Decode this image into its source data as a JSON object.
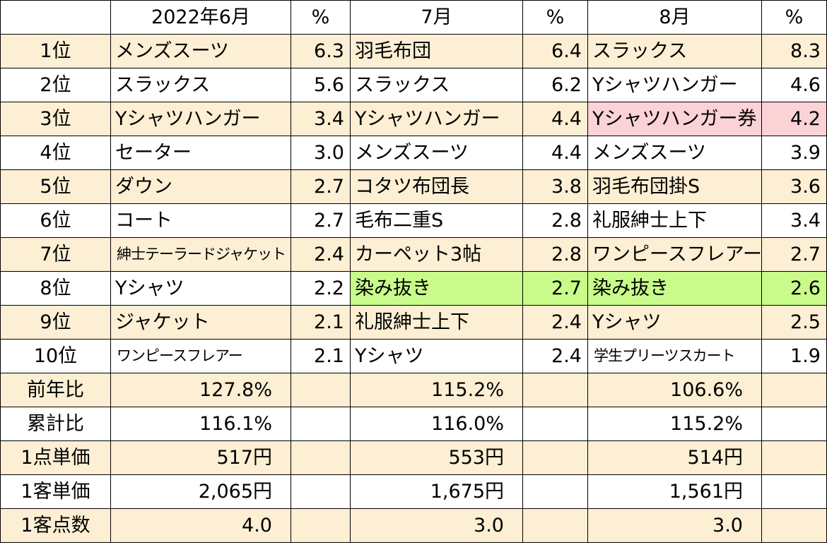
{
  "header": {
    "rank_col": "",
    "months": [
      "2022年6月",
      "7月",
      "8月"
    ],
    "pct_label": "%"
  },
  "ranks": [
    {
      "rank": "1位",
      "items": [
        [
          "メンズスーツ",
          "6.3"
        ],
        [
          "羽毛布団",
          "6.4"
        ],
        [
          "スラックス",
          "8.3"
        ]
      ]
    },
    {
      "rank": "2位",
      "items": [
        [
          "スラックス",
          "5.6"
        ],
        [
          "スラックス",
          "6.2"
        ],
        [
          "Yシャツハンガー",
          "4.6"
        ]
      ]
    },
    {
      "rank": "3位",
      "items": [
        [
          "Yシャツハンガー",
          "3.4"
        ],
        [
          "Yシャツハンガー",
          "4.4"
        ],
        [
          "Yシャツハンガー券",
          "4.2"
        ]
      ]
    },
    {
      "rank": "4位",
      "items": [
        [
          "セーター",
          "3.0"
        ],
        [
          "メンズスーツ",
          "4.4"
        ],
        [
          "メンズスーツ",
          "3.9"
        ]
      ]
    },
    {
      "rank": "5位",
      "items": [
        [
          "ダウン",
          "2.7"
        ],
        [
          "コタツ布団長",
          "3.8"
        ],
        [
          "羽毛布団掛S",
          "3.6"
        ]
      ]
    },
    {
      "rank": "6位",
      "items": [
        [
          "コート",
          "2.7"
        ],
        [
          "毛布二重S",
          "2.8"
        ],
        [
          "礼服紳士上下",
          "3.4"
        ]
      ]
    },
    {
      "rank": "7位",
      "items": [
        [
          "紳士テーラードジャケット",
          "2.4"
        ],
        [
          "カーペット3帖",
          "2.8"
        ],
        [
          "ワンピースフレアー",
          "2.7"
        ]
      ]
    },
    {
      "rank": "8位",
      "items": [
        [
          "Yシャツ",
          "2.2"
        ],
        [
          "染み抜き",
          "2.7"
        ],
        [
          "染み抜き",
          "2.6"
        ]
      ]
    },
    {
      "rank": "9位",
      "items": [
        [
          "ジャケット",
          "2.1"
        ],
        [
          "礼服紳士上下",
          "2.4"
        ],
        [
          "Yシャツ",
          "2.5"
        ]
      ]
    },
    {
      "rank": "10位",
      "items": [
        [
          "ワンピースフレアー",
          "2.1"
        ],
        [
          "Yシャツ",
          "2.4"
        ],
        [
          "学生プリーツスカート",
          "1.9"
        ]
      ]
    }
  ],
  "summary": [
    {
      "label": "前年比",
      "values": [
        "127.8%",
        "115.2%",
        "106.6%"
      ]
    },
    {
      "label": "累計比",
      "values": [
        "116.1%",
        "116.0%",
        "115.2%"
      ]
    },
    {
      "label": "1点単価",
      "values": [
        "517円",
        "553円",
        "514円"
      ]
    },
    {
      "label": "1客単価",
      "values": [
        "2,065円",
        "1,675円",
        "1,561円"
      ]
    },
    {
      "label": "1客点数",
      "values": [
        "4.0",
        "3.0",
        "3.0"
      ]
    }
  ],
  "colors": {
    "row_shade": "#fcefd3",
    "highlight_green": "#c9fb8a",
    "highlight_pink": "#fbd2d6",
    "border": "#000000"
  }
}
